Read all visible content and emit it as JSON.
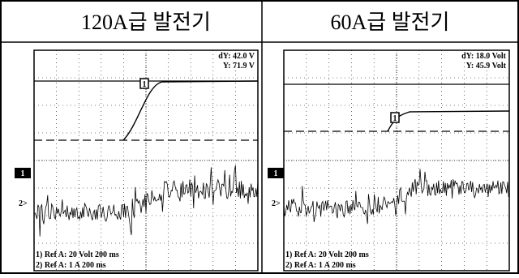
{
  "table": {
    "headers": [
      "120A급 발전기",
      "60A급 발전기"
    ]
  },
  "panels": [
    {
      "channel_1_marker": "1",
      "channel_2_marker": "2>",
      "cursor_marker": "1",
      "readouts": [
        "dY: 42.0 V",
        "Y: 71.9 V"
      ],
      "legend": [
        "1) Ref A:  20 Volt 200 ms",
        "2) Ref A:   1 A 200 ms"
      ]
    },
    {
      "channel_1_marker": "1",
      "channel_2_marker": "2>",
      "cursor_marker": "1",
      "readouts": [
        "dY: 18.0 Volt",
        "Y: 45.9 Volt"
      ],
      "legend": [
        "1) Ref A:  20 Volt  200 ms",
        "2) Ref A:   1 A  200 ms"
      ]
    }
  ]
}
